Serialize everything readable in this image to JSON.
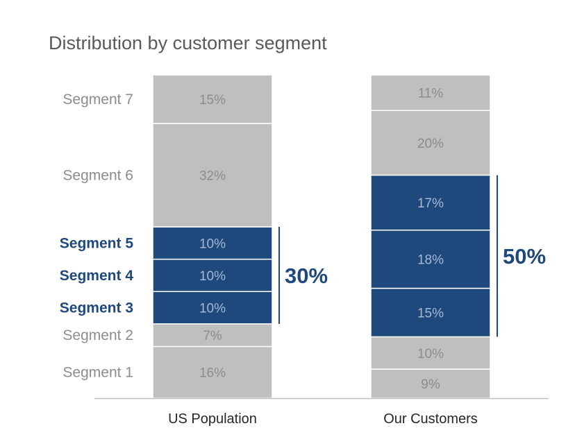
{
  "chart_data": {
    "type": "bar",
    "subtype": "stacked-100",
    "title": "Distribution by customer segment",
    "categories": [
      "US Population",
      "Our Customers"
    ],
    "series": [
      {
        "name": "Segment 1",
        "values": [
          16,
          9
        ],
        "value_labels": [
          "16%",
          "9%"
        ],
        "highlight": false
      },
      {
        "name": "Segment 2",
        "values": [
          7,
          10
        ],
        "value_labels": [
          "7%",
          "10%"
        ],
        "highlight": false
      },
      {
        "name": "Segment 3",
        "values": [
          10,
          15
        ],
        "value_labels": [
          "10%",
          "15%"
        ],
        "highlight": true
      },
      {
        "name": "Segment 4",
        "values": [
          10,
          18
        ],
        "value_labels": [
          "10%",
          "18%"
        ],
        "highlight": true
      },
      {
        "name": "Segment 5",
        "values": [
          10,
          17
        ],
        "value_labels": [
          "10%",
          "17%"
        ],
        "highlight": true
      },
      {
        "name": "Segment 6",
        "values": [
          32,
          20
        ],
        "value_labels": [
          "32%",
          "20%"
        ],
        "highlight": false
      },
      {
        "name": "Segment 7",
        "values": [
          15,
          11
        ],
        "value_labels": [
          "15%",
          "11%"
        ],
        "highlight": false
      }
    ],
    "group_totals": [
      "30%",
      "50%"
    ],
    "ylim": [
      0,
      100
    ],
    "xlabel": "",
    "ylabel": "",
    "legend": "none",
    "grid": false,
    "colors": {
      "highlight": "#1f497d",
      "base": "#bfbfbf",
      "muted_text": "#8c8c8c",
      "highlight_value_text": "#a6b8d4",
      "highlight_label_text": "#1f497d",
      "axis": "#bfbfbf"
    }
  }
}
